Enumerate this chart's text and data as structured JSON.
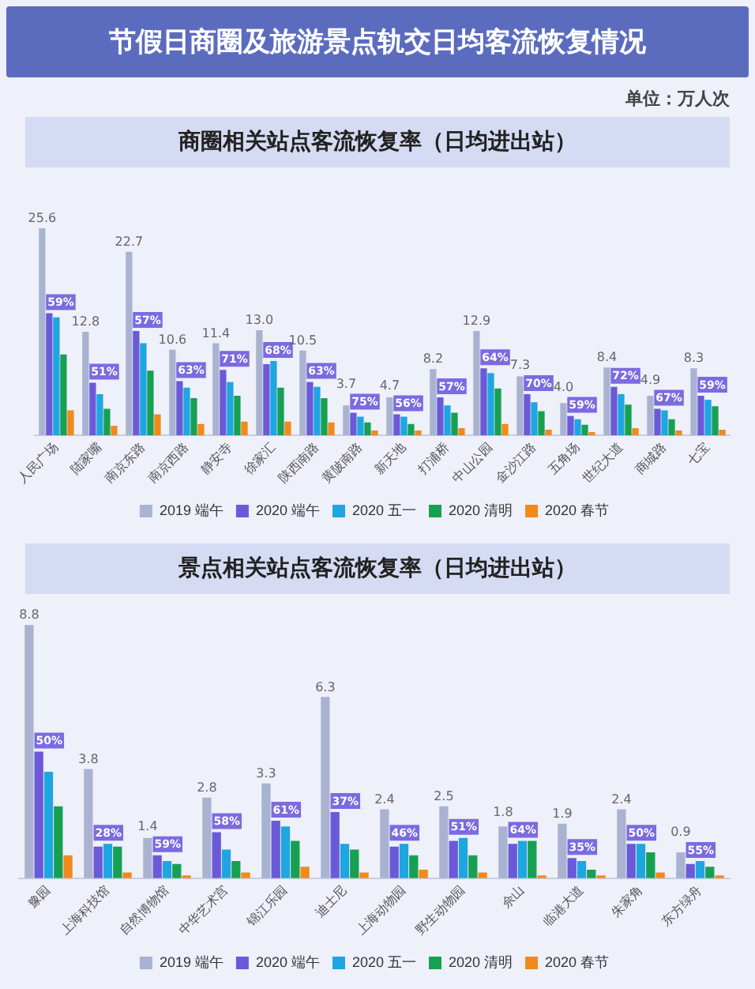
{
  "chart_data": [
    {
      "type": "bar",
      "title": "节假日商圈及旅游景点轨交日均客流恢复情况",
      "subtitle": "商圈相关站点客流恢复率（日均进出站）",
      "annotations": [
        "单位：万人次",
        {
          "text": "59%",
          "x": "人民广场",
          "y": 15.1
        },
        {
          "text": "51%",
          "x": "陆家嘴",
          "y": 6.5
        },
        {
          "text": "57%",
          "x": "南京东路",
          "y": 12.9
        },
        {
          "text": "63%",
          "x": "南京西路",
          "y": 6.7
        },
        {
          "text": "71%",
          "x": "静安寺",
          "y": 8.1
        },
        {
          "text": "68%",
          "x": "徐家汇",
          "y": 8.8
        },
        {
          "text": "63%",
          "x": "陕西南路",
          "y": 6.6
        },
        {
          "text": "75%",
          "x": "黄陂南路",
          "y": 2.8
        },
        {
          "text": "56%",
          "x": "新天地",
          "y": 2.6
        },
        {
          "text": "57%",
          "x": "打浦桥",
          "y": 4.7
        },
        {
          "text": "64%",
          "x": "中山公园",
          "y": 8.3
        },
        {
          "text": "70%",
          "x": "金沙江路",
          "y": 5.1
        },
        {
          "text": "59%",
          "x": "五角场",
          "y": 2.4
        },
        {
          "text": "72%",
          "x": "世纪大道",
          "y": 6.0
        },
        {
          "text": "67%",
          "x": "商城路",
          "y": 3.3
        },
        {
          "text": "59%",
          "x": "七宝",
          "y": 4.9
        }
      ],
      "categories": [
        "人民广场",
        "陆家嘴",
        "南京东路",
        "南京西路",
        "静安寺",
        "徐家汇",
        "陕西南路",
        "黄陂南路",
        "新天地",
        "打浦桥",
        "中山公园",
        "金沙江路",
        "五角场",
        "世纪大道",
        "商城路",
        "七宝"
      ],
      "series": [
        {
          "name": "2019 端午",
          "color": "#a9b3d1",
          "values": [
            25.6,
            12.8,
            22.7,
            10.6,
            11.4,
            13.0,
            10.5,
            3.7,
            4.7,
            8.2,
            12.9,
            7.3,
            4.0,
            8.4,
            4.9,
            8.3
          ],
          "value_labels": [
            "25.6",
            "12.8",
            "22.7",
            "10.6",
            "11.4",
            "13.0",
            "10.5",
            "3.7",
            "4.7",
            "8.2",
            "12.9",
            "7.3",
            "4.0",
            "8.4",
            "4.9",
            "8.3"
          ]
        },
        {
          "name": "2020 端午",
          "color": "#6a5ad8",
          "values": [
            15.1,
            6.5,
            12.9,
            6.7,
            8.1,
            8.8,
            6.6,
            2.8,
            2.6,
            4.7,
            8.3,
            5.1,
            2.4,
            6.0,
            3.3,
            4.9
          ]
        },
        {
          "name": "2020 五一",
          "color": "#1ea6e0",
          "values": [
            14.6,
            5.1,
            11.4,
            5.9,
            6.6,
            9.2,
            6.0,
            2.3,
            2.3,
            3.7,
            7.7,
            4.1,
            2.0,
            5.1,
            3.1,
            4.4
          ]
        },
        {
          "name": "2020 清明",
          "color": "#18a052",
          "values": [
            10.0,
            3.3,
            8.0,
            4.6,
            4.9,
            5.9,
            4.6,
            1.6,
            1.4,
            2.8,
            5.8,
            3.0,
            1.3,
            3.8,
            2.0,
            3.6
          ]
        },
        {
          "name": "2020 春节",
          "color": "#f08a1c",
          "values": [
            3.1,
            1.2,
            2.6,
            1.4,
            1.7,
            1.7,
            1.6,
            0.6,
            0.6,
            0.9,
            1.4,
            0.7,
            0.4,
            0.9,
            0.6,
            0.7
          ]
        }
      ],
      "tick_labels": "x",
      "legend": "bottom"
    },
    {
      "type": "bar",
      "title": "景点相关站点客流恢复率（日均进出站）",
      "annotations": [
        {
          "text": "50%",
          "x": "豫园",
          "y": 4.4
        },
        {
          "text": "28%",
          "x": "上海科技馆",
          "y": 1.1
        },
        {
          "text": "59%",
          "x": "自然博物馆",
          "y": 0.8
        },
        {
          "text": "58%",
          "x": "中华艺术宫",
          "y": 1.6
        },
        {
          "text": "61%",
          "x": "锦江乐园",
          "y": 2.0
        },
        {
          "text": "37%",
          "x": "迪士尼",
          "y": 2.3
        },
        {
          "text": "46%",
          "x": "上海动物园",
          "y": 1.1
        },
        {
          "text": "51%",
          "x": "野生动物园",
          "y": 1.3
        },
        {
          "text": "64%",
          "x": "佘山",
          "y": 1.2
        },
        {
          "text": "35%",
          "x": "临港大道",
          "y": 0.7
        },
        {
          "text": "50%",
          "x": "朱家角",
          "y": 1.2
        },
        {
          "text": "55%",
          "x": "东方绿舟",
          "y": 0.5
        }
      ],
      "categories": [
        "豫园",
        "上海科技馆",
        "自然博物馆",
        "中华艺术宫",
        "锦江乐园",
        "迪士尼",
        "上海动物园",
        "野生动物园",
        "佘山",
        "临港大道",
        "朱家角",
        "东方绿舟"
      ],
      "series": [
        {
          "name": "2019 端午",
          "color": "#a9b3d1",
          "values": [
            8.8,
            3.8,
            1.4,
            2.8,
            3.3,
            6.3,
            2.4,
            2.5,
            1.8,
            1.9,
            2.4,
            0.9
          ],
          "value_labels": [
            "8.8",
            "3.8",
            "1.4",
            "2.8",
            "3.3",
            "6.3",
            "2.4",
            "2.5",
            "1.8",
            "1.9",
            "2.4",
            "0.9"
          ]
        },
        {
          "name": "2020 端午",
          "color": "#6a5ad8",
          "values": [
            4.4,
            1.1,
            0.8,
            1.6,
            2.0,
            2.3,
            1.1,
            1.3,
            1.2,
            0.7,
            1.2,
            0.5
          ]
        },
        {
          "name": "2020 五一",
          "color": "#1ea6e0",
          "values": [
            3.7,
            1.2,
            0.6,
            1.0,
            1.8,
            1.2,
            1.2,
            1.4,
            1.3,
            0.6,
            1.2,
            0.6
          ]
        },
        {
          "name": "2020 清明",
          "color": "#18a052",
          "values": [
            2.5,
            1.1,
            0.5,
            0.6,
            1.3,
            1.0,
            0.8,
            0.8,
            1.3,
            0.3,
            0.9,
            0.4
          ]
        },
        {
          "name": "2020 春节",
          "color": "#f08a1c",
          "values": [
            0.8,
            0.2,
            0.1,
            0.2,
            0.4,
            0.2,
            0.3,
            0.2,
            0.1,
            0.1,
            0.2,
            0.1
          ]
        }
      ],
      "tick_labels": "x",
      "legend": "bottom"
    }
  ]
}
